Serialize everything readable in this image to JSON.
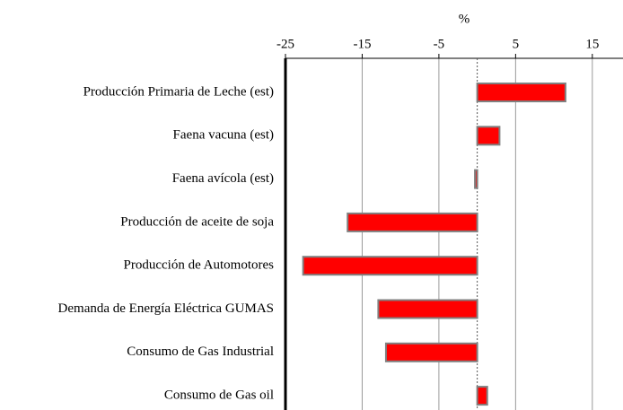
{
  "chart_data": {
    "type": "hbar",
    "xlabel": "%",
    "categories": [
      "Producción Primaria de Leche  (est)",
      "Faena vacuna (est)",
      "Faena avícola (est)",
      "Producción de aceite de soja",
      "Producción de Automotores",
      "Demanda de Energía Eléctrica GUMAS",
      "Consumo de Gas Industrial",
      "Consumo de Gas oil"
    ],
    "values": [
      11.5,
      2.9,
      -0.3,
      -16.9,
      -22.7,
      -12.9,
      -11.9,
      1.3
    ],
    "color": "#ff0000",
    "xlim": [
      -25,
      19
    ],
    "xticks": [
      -25,
      -15,
      -5,
      5,
      15
    ],
    "grid": true
  }
}
